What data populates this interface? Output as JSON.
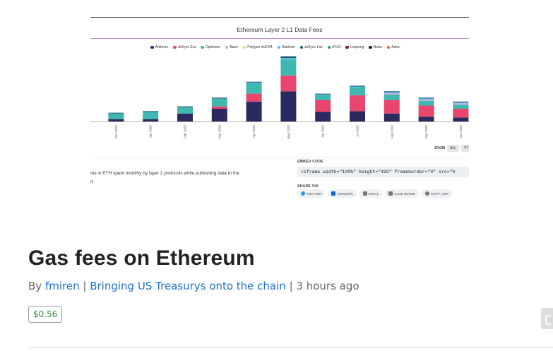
{
  "chart_data": {
    "type": "bar",
    "stacked": true,
    "title": "Ethereum Layer 2 L1 Data Fees",
    "categories": [
      "Dec 2022",
      "Jan 2023",
      "Feb 2023",
      "Mar 2023",
      "Apr 2023",
      "May 2023",
      "Jun 2023",
      "Jul 2023",
      "Aug 2023",
      "Sep 2023",
      "Oct 2023"
    ],
    "series": [
      {
        "name": "Arbitrum",
        "color": "#2b2a5e",
        "values": [
          3,
          3,
          10,
          16,
          25,
          38,
          12,
          13,
          10,
          6,
          5
        ]
      },
      {
        "name": "zkSync Era",
        "color": "#e8456f",
        "values": [
          0,
          0,
          0,
          3,
          10,
          20,
          15,
          20,
          17,
          14,
          11
        ]
      },
      {
        "name": "Optimism",
        "color": "#3fb8b0",
        "values": [
          7,
          9,
          8,
          10,
          13,
          20,
          6,
          10,
          7,
          6,
          5
        ]
      },
      {
        "name": "Base",
        "color": "#b9b1e0",
        "values": [
          0,
          0,
          0,
          0,
          0,
          0,
          0,
          0,
          2,
          2,
          2
        ]
      },
      {
        "name": "Polygon zkEVM",
        "color": "#f3d75c",
        "values": [
          0,
          0,
          0,
          0,
          0,
          0,
          0,
          0,
          0,
          0,
          0
        ]
      },
      {
        "name": "Starknet",
        "color": "#58b8e8",
        "values": [
          0,
          0,
          0,
          0,
          1,
          2,
          1,
          1,
          1,
          1,
          1
        ]
      },
      {
        "name": "zkSync Lite",
        "color": "#1a5a6b",
        "values": [
          1,
          1,
          1,
          1,
          1,
          2,
          1,
          1,
          1,
          1,
          1
        ]
      },
      {
        "name": "dYdX",
        "color": "#12a19a",
        "values": [
          0,
          0,
          0,
          0,
          0,
          0,
          0,
          0,
          0,
          0,
          0
        ]
      },
      {
        "name": "Loopring",
        "color": "#7c1a3c",
        "values": [
          0,
          0,
          0,
          0,
          0,
          0,
          0,
          0,
          0,
          0,
          0
        ]
      },
      {
        "name": "Boba",
        "color": "#222222",
        "values": [
          0,
          0,
          0,
          0,
          0,
          0,
          0,
          0,
          0,
          0,
          0
        ]
      },
      {
        "name": "Aztec",
        "color": "#ee5b2b",
        "values": [
          0,
          0,
          0,
          0,
          0,
          0,
          0,
          0,
          0,
          0,
          0
        ]
      }
    ],
    "ylim": [
      0,
      80
    ],
    "grid": false,
    "legend_position": "top"
  },
  "zoom": {
    "label": "ZOOM",
    "buttons": [
      "ALL",
      "YT"
    ]
  },
  "description_fragment": {
    "line1": "ees in ETH spent monthly by layer 2 protocols while publishing data to the",
    "line2": "et"
  },
  "embed": {
    "label": "EMBED CODE",
    "code": "<iframe width=\"100%\" height=\"420\" frameborder=\"0\" src=\"h"
  },
  "share": {
    "label": "SHARE VIA",
    "buttons": [
      {
        "label": "TWITTER",
        "icon": "twitter-icon",
        "color": "#1da1f2"
      },
      {
        "label": "LINKEDIN",
        "icon": "linkedin-icon",
        "color": "#0a66c2"
      },
      {
        "label": "EMAIL",
        "icon": "email-icon",
        "color": "#666666"
      },
      {
        "label": "SAVE IMAGE",
        "icon": "camera-icon",
        "color": "#666666"
      },
      {
        "label": "COPY LINK",
        "icon": "link-icon",
        "color": "#666666"
      }
    ]
  },
  "post": {
    "title": "Gas fees on Ethereum",
    "by_label": "By",
    "author": "fmiren",
    "separator1": "|",
    "channel": "Bringing US Treasurys onto the chain",
    "separator2": "|",
    "time": "3 hours ago",
    "price": "$0.56"
  }
}
